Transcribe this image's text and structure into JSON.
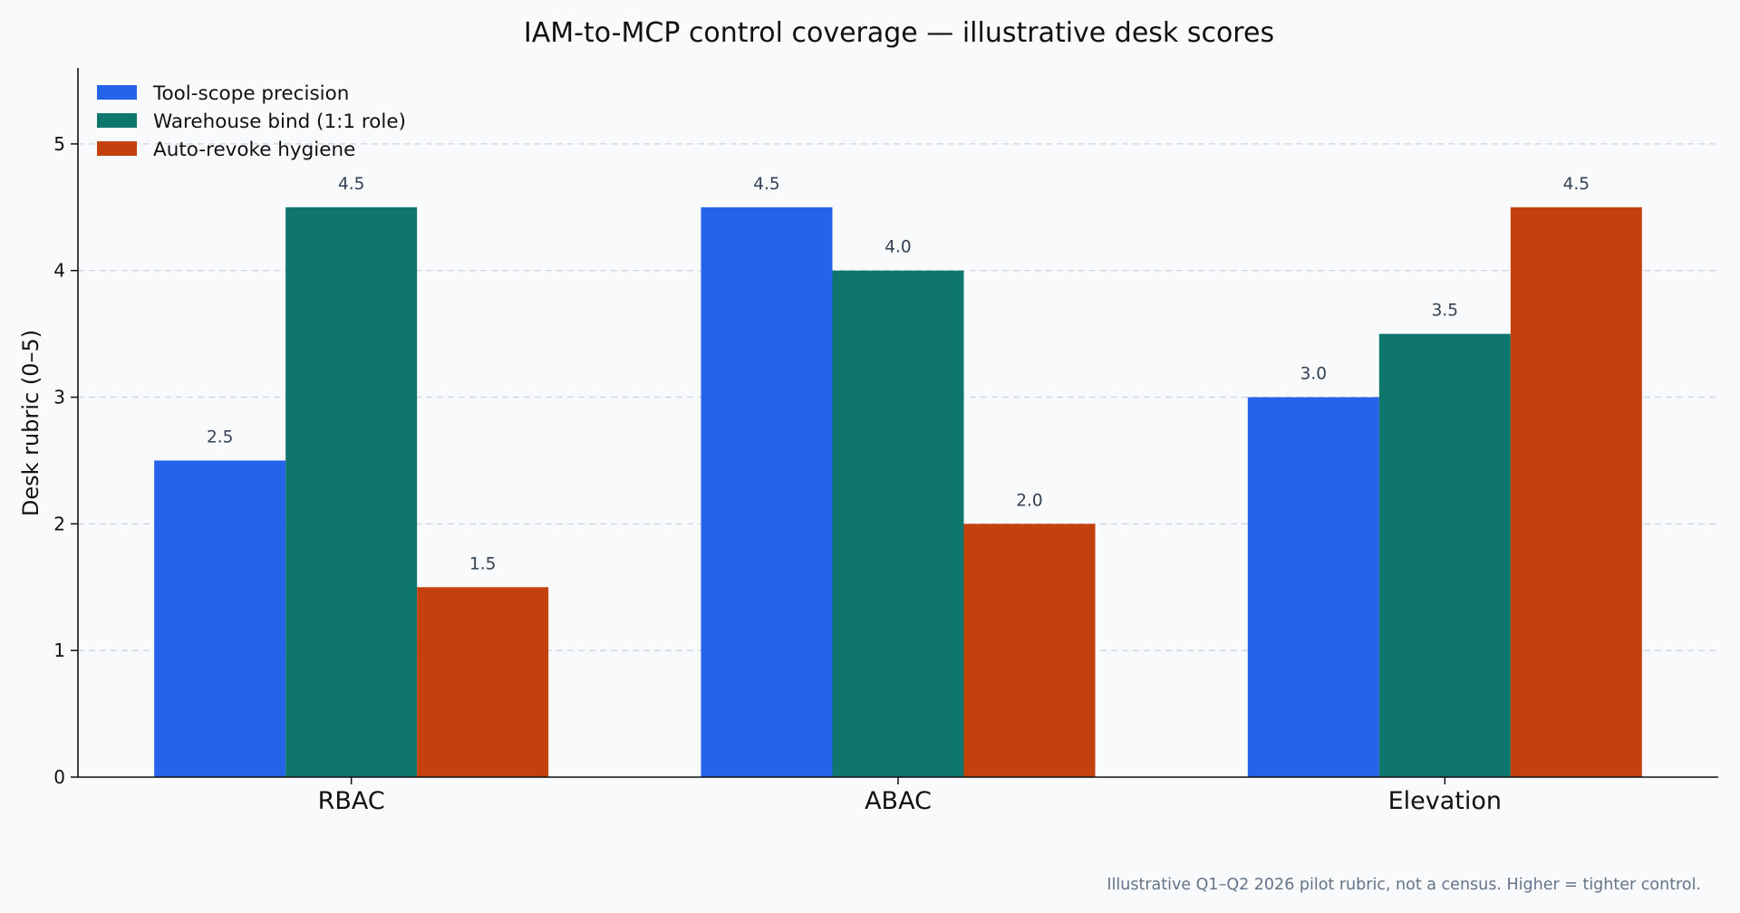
{
  "chart_data": {
    "type": "bar",
    "title": "IAM-to-MCP control coverage — illustrative desk scores",
    "xlabel": "",
    "ylabel": "Desk rubric (0–5)",
    "ylim": [
      0,
      5.6
    ],
    "yticks": [
      0,
      1,
      2,
      3,
      4,
      5
    ],
    "categories": [
      "RBAC",
      "ABAC",
      "Elevation"
    ],
    "series": [
      {
        "name": "Tool-scope precision",
        "color": "#2563eb",
        "values": [
          2.5,
          4.5,
          3.0
        ],
        "labels": [
          "2.5",
          "4.5",
          "3.0"
        ]
      },
      {
        "name": "Warehouse bind (1:1 role)",
        "color": "#0f766e",
        "values": [
          4.5,
          4.0,
          3.5
        ],
        "labels": [
          "4.5",
          "4.0",
          "3.5"
        ]
      },
      {
        "name": "Auto-revoke hygiene",
        "color": "#c2410c",
        "values": [
          1.5,
          2.0,
          4.5
        ],
        "labels": [
          "1.5",
          "2.0",
          "4.5"
        ]
      }
    ],
    "grid": true,
    "legend_position": "top-left",
    "footnote": "Illustrative Q1–Q2 2026 pilot rubric, not a census. Higher = tighter control."
  }
}
